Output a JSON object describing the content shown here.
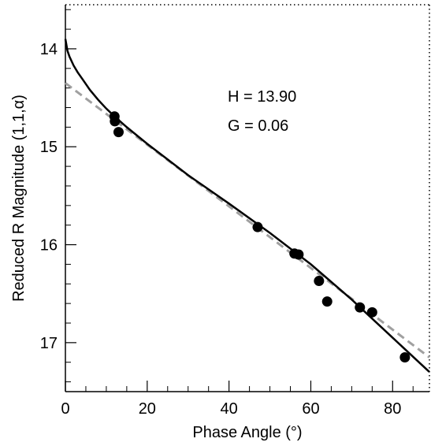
{
  "chart_data": {
    "type": "scatter",
    "xlabel": "Phase Angle (°)",
    "ylabel": "Reduced R Magnitude (1,1,α)",
    "xlim": [
      0,
      89
    ],
    "ylim": [
      17.5,
      13.55
    ],
    "y_inverted": true,
    "grid": false,
    "x_ticks": [
      0,
      20,
      40,
      60,
      80
    ],
    "y_ticks": [
      14,
      15,
      16,
      17
    ],
    "annotations": [
      "H = 13.90",
      "G = 0.06"
    ],
    "series": [
      {
        "marker": "filled-circle",
        "color": "#000000",
        "points": [
          {
            "x": 12.0,
            "y": 14.69
          },
          {
            "x": 12.1,
            "y": 14.74
          },
          {
            "x": 13.0,
            "y": 14.85
          },
          {
            "x": 47.0,
            "y": 15.82
          },
          {
            "x": 56.0,
            "y": 16.09
          },
          {
            "x": 57.0,
            "y": 16.1
          },
          {
            "x": 62.0,
            "y": 16.37
          },
          {
            "x": 64.0,
            "y": 16.58
          },
          {
            "x": 72.0,
            "y": 16.64
          },
          {
            "x": 75.0,
            "y": 16.69
          },
          {
            "x": 83.0,
            "y": 17.15
          }
        ]
      },
      {
        "line": "solid",
        "color": "#000000",
        "x": [
          0,
          0.5,
          1,
          2,
          3,
          4,
          5,
          6,
          8,
          10,
          12,
          15,
          20,
          25,
          30,
          40,
          50,
          60,
          70,
          80,
          89
        ],
        "y": [
          13.9,
          14.02,
          14.08,
          14.17,
          14.24,
          14.3,
          14.36,
          14.42,
          14.52,
          14.61,
          14.69,
          14.8,
          14.97,
          15.13,
          15.29,
          15.58,
          15.88,
          16.2,
          16.56,
          16.95,
          17.3
        ]
      },
      {
        "line": "dashed",
        "color": "#a0a0a0",
        "x": [
          0,
          89
        ],
        "y": [
          14.35,
          17.15
        ]
      }
    ]
  }
}
